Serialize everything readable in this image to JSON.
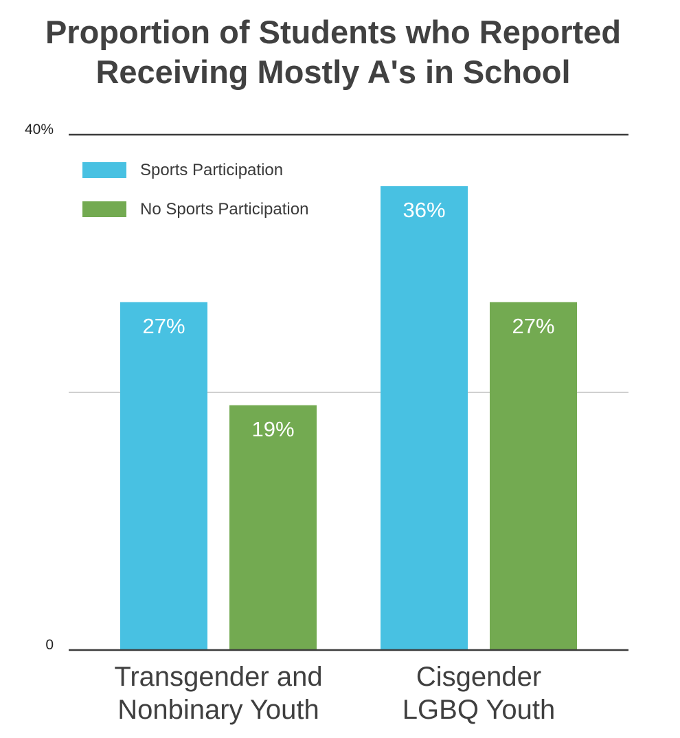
{
  "chart_data": {
    "type": "bar",
    "title": "Proportion of Students who Reported Receiving Mostly A's in School",
    "title_lines": [
      "Proportion of Students who Reported",
      "Receiving Mostly A's in School"
    ],
    "categories": [
      "Transgender and Nonbinary Youth",
      "Cisgender LGBQ Youth"
    ],
    "category_lines": [
      [
        "Transgender and",
        "Nonbinary Youth"
      ],
      [
        "Cisgender",
        "LGBQ Youth"
      ]
    ],
    "series": [
      {
        "name": "Sports Participation",
        "values": [
          27,
          36
        ],
        "labels": [
          "27%",
          "36%"
        ],
        "color": "#48c1e2"
      },
      {
        "name": "No Sports Participation",
        "values": [
          19,
          27
        ],
        "labels": [
          "19%",
          "27%"
        ],
        "color": "#73aa51"
      }
    ],
    "ylim": [
      0,
      40
    ],
    "yticks": [
      {
        "value": 0,
        "label": "0"
      },
      {
        "value": 40,
        "label": "40%"
      }
    ],
    "gridlines": [
      20
    ],
    "legend_position": "top-left",
    "xlabel": "",
    "ylabel": ""
  }
}
